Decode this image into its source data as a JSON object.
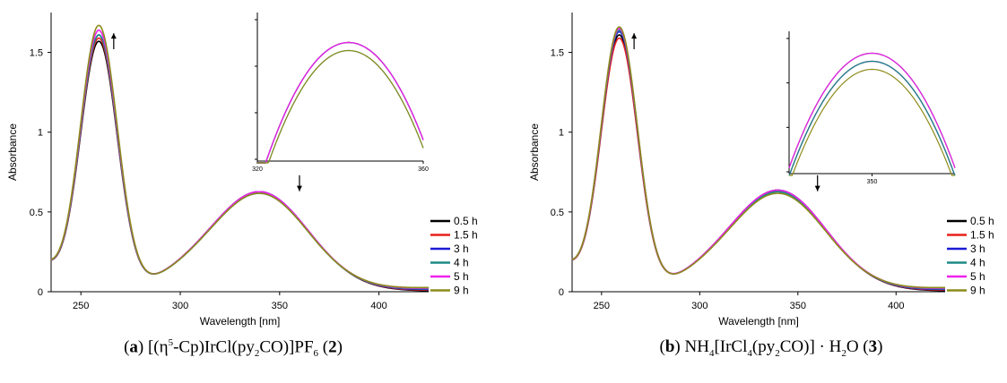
{
  "colors": {
    "0.5 h": "#000000",
    "1.5 h": "#e8201c",
    "3 h": "#1b1bd6",
    "4 h": "#1f8a87",
    "5 h": "#ee22ee",
    "9 h": "#8c8c1a"
  },
  "chart_data": [
    {
      "type": "line",
      "xlabel": "Wavelength [nm]",
      "ylabel": "Absorbance",
      "xlim": [
        235,
        425
      ],
      "ylim": [
        0,
        1.75
      ],
      "xticks": [
        250,
        300,
        350,
        400
      ],
      "yticks": [
        0,
        0.5,
        1,
        1.5
      ],
      "xtick_labels": [
        "250",
        "300",
        "350",
        "400"
      ],
      "ytick_labels": [
        "0",
        "0.5",
        "1",
        "1.5"
      ],
      "legend": [
        "0.5 h",
        "1.5 h",
        "3 h",
        "4 h",
        "5 h",
        "9 h"
      ],
      "legend_position": "right",
      "peak1": {
        "x": 259,
        "values": [
          1.56,
          1.58,
          1.6,
          1.6,
          1.63,
          1.66
        ]
      },
      "peak2": {
        "x": 340,
        "values": [
          0.62,
          0.62,
          0.62,
          0.61,
          0.62,
          0.61
        ]
      },
      "arrows": [
        {
          "x": 262,
          "direction": "up"
        },
        {
          "x": 360,
          "direction": "down"
        }
      ],
      "inset": {
        "xlim": [
          320,
          360
        ],
        "xtick_labels": [
          "320",
          "360"
        ]
      },
      "caption": {
        "label": "a",
        "text": "[(η⁵-Cp)IrCl(py₂CO)]PF₆",
        "compound": "2"
      }
    },
    {
      "type": "line",
      "xlabel": "Wavelength [nm]",
      "ylabel": "Absorbance",
      "xlim": [
        235,
        425
      ],
      "ylim": [
        0,
        1.75
      ],
      "xticks": [
        250,
        300,
        350,
        400
      ],
      "yticks": [
        0,
        0.5,
        1,
        1.5
      ],
      "xtick_labels": [
        "250",
        "300",
        "350",
        "400"
      ],
      "ytick_labels": [
        "0",
        "0.5",
        "1",
        "1.5"
      ],
      "legend": [
        "0.5 h",
        "1.5 h",
        "3 h",
        "4 h",
        "5 h",
        "9 h"
      ],
      "legend_position": "right",
      "peak1": {
        "x": 259,
        "values": [
          1.6,
          1.58,
          1.62,
          1.63,
          1.64,
          1.65
        ]
      },
      "peak2": {
        "x": 340,
        "values": [
          0.63,
          0.62,
          0.62,
          0.62,
          0.63,
          0.61
        ]
      },
      "arrows": [
        {
          "x": 262,
          "direction": "up"
        },
        {
          "x": 360,
          "direction": "down"
        }
      ],
      "inset": {
        "xlim": [
          330,
          370
        ],
        "xtick_labels": [
          "350"
        ]
      },
      "caption": {
        "label": "b",
        "text": "NH₄[IrCl₄(py₂CO)] · H₂O",
        "compound": "3"
      }
    }
  ]
}
